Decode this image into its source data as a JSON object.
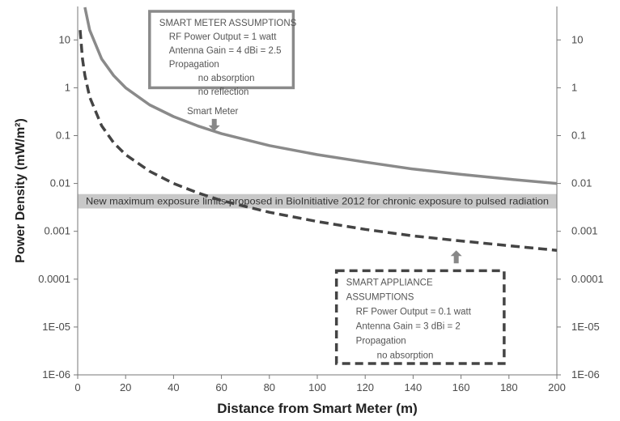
{
  "chart_data": {
    "type": "line",
    "xlabel": "Distance from Smart Meter (m)",
    "ylabel": "Power Density (mW/m²)",
    "xlim": [
      0,
      200
    ],
    "ylim": [
      1e-06,
      50
    ],
    "y_scale": "log",
    "x_ticks": [
      "0",
      "20",
      "40",
      "60",
      "80",
      "100",
      "120",
      "140",
      "160",
      "180",
      "200"
    ],
    "y_ticks": [
      "10",
      "1",
      "0.1",
      "0.01",
      "0.001",
      "0.0001",
      "1E-05",
      "1E-06"
    ],
    "y_ticks_right": true,
    "grid": false,
    "series": [
      {
        "name": "Smart Meter",
        "style": "solid",
        "color": "#8a8a8a",
        "x": [
          3,
          5,
          10,
          15,
          20,
          30,
          40,
          50,
          60,
          80,
          100,
          120,
          140,
          160,
          180,
          200
        ],
        "y": [
          48,
          16,
          4,
          1.8,
          1,
          0.44,
          0.25,
          0.16,
          0.11,
          0.062,
          0.04,
          0.028,
          0.02,
          0.0155,
          0.0123,
          0.01
        ]
      },
      {
        "name": "Smart Appliance",
        "style": "dashed",
        "color": "#444444",
        "x": [
          1,
          2,
          3,
          5,
          10,
          15,
          20,
          30,
          40,
          50,
          60,
          80,
          100,
          120,
          140,
          160,
          180,
          200
        ],
        "y": [
          16,
          4,
          1.8,
          0.64,
          0.16,
          0.071,
          0.04,
          0.018,
          0.01,
          0.0064,
          0.0044,
          0.0025,
          0.0016,
          0.0011,
          0.0008,
          0.00063,
          0.0005,
          0.0004
        ]
      }
    ],
    "band": {
      "label": "New maximum exposure limits proposed in BioInitiative 2012 for chronic exposure to pulsed radiation",
      "ymin": 0.003,
      "ymax": 0.006,
      "color": "#c8c8c8"
    },
    "annotations": [
      {
        "text": "Smart Meter",
        "x": 57,
        "y": 0.12,
        "arrow": "down"
      },
      {
        "text": "Smart Appliance",
        "x": 158,
        "y": 0.00025,
        "arrow": "up"
      }
    ],
    "assumption_boxes": [
      {
        "style": "solid",
        "x_range": [
          30,
          90
        ],
        "y_range": [
          1.0,
          50
        ],
        "lines": [
          "SMART METER ASSUMPTIONS",
          "RF Power  Output = 1 watt",
          "Antenna Gain =  4 dBi = 2.5",
          "Propagation",
          "no absorption",
          "no reflection"
        ]
      },
      {
        "style": "dashed",
        "x_range": [
          108,
          178
        ],
        "y_range": [
          1e-06,
          0.00015
        ],
        "lines": [
          "SMART APPLIANCE",
          "ASSUMPTIONS",
          "RF Power Output = 0.1 watt",
          "Antenna Gain = 3 dBi = 2",
          "Propagation",
          "no absorption"
        ]
      }
    ]
  }
}
